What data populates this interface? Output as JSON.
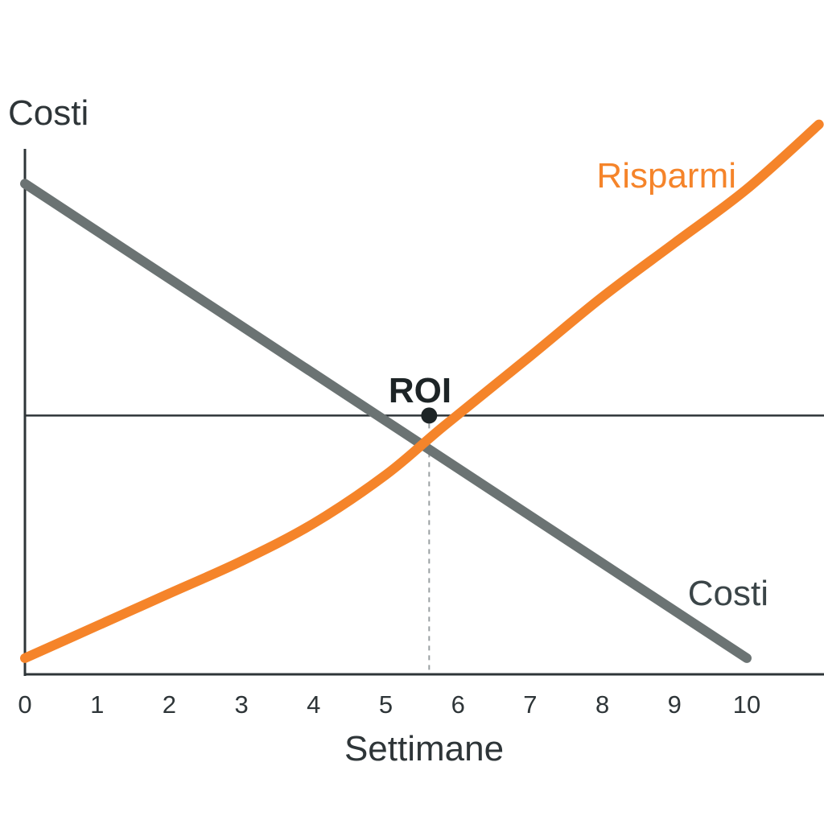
{
  "chart_data": {
    "type": "line",
    "title": "",
    "xlabel": "Settimane",
    "ylabel": "Costi",
    "xlim": [
      0,
      11.3
    ],
    "ylim": [
      0,
      100
    ],
    "x_ticks": [
      "0",
      "1",
      "2",
      "3",
      "4",
      "5",
      "6",
      "7",
      "8",
      "9",
      "10"
    ],
    "reference_line": {
      "y": 48
    },
    "series": [
      {
        "name": "Costi",
        "color": "#6b7373",
        "x": [
          0,
          10
        ],
        "y": [
          91,
          3
        ]
      },
      {
        "name": "Risparmi",
        "color": "#f5842a",
        "x": [
          0,
          1,
          2,
          3,
          4,
          5,
          5.8,
          7,
          8,
          9,
          10,
          11
        ],
        "y": [
          3,
          9,
          15,
          21,
          28,
          37,
          46,
          59,
          70,
          80,
          90,
          102
        ]
      }
    ],
    "annotation": {
      "label": "ROI",
      "x": 5.6,
      "y": 48,
      "marker_color": "#1d2426"
    },
    "colors": {
      "axis": "#2e3538",
      "text": "#2e3538",
      "dash": "#9aa0a2"
    }
  }
}
